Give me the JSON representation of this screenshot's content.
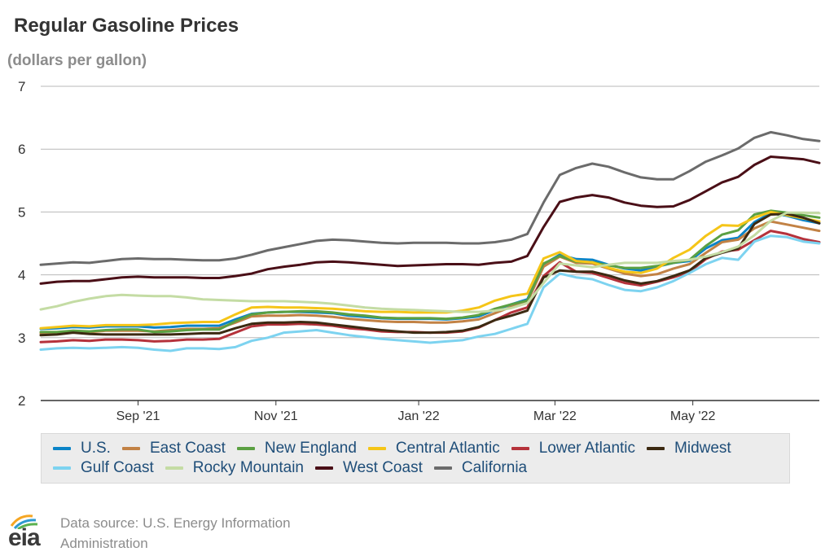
{
  "chart_data": {
    "type": "line",
    "title": "Regular Gasoline Prices",
    "subtitle": "(dollars per gallon)",
    "ylim": [
      2,
      7
    ],
    "yticks": [
      "2",
      "3",
      "4",
      "5",
      "6",
      "7"
    ],
    "xlabel": "",
    "ylabel": "",
    "xlim": [
      0,
      48
    ],
    "xticks": [
      {
        "label": "Sep '21",
        "x": 6
      },
      {
        "label": "Nov '21",
        "x": 14.5
      },
      {
        "label": "Jan '22",
        "x": 23.3
      },
      {
        "label": "Mar '22",
        "x": 31.7
      },
      {
        "label": "May '22",
        "x": 40.2
      }
    ],
    "x": [
      0,
      1,
      2,
      3,
      4,
      5,
      6,
      7,
      8,
      9,
      10,
      11,
      12,
      13,
      14,
      15,
      16,
      17,
      18,
      19,
      20,
      21,
      22,
      23,
      24,
      25,
      26,
      27,
      28,
      29,
      30,
      31,
      32,
      33,
      34,
      35,
      36,
      37,
      38,
      39,
      40,
      41,
      42,
      43,
      44,
      45,
      46,
      47,
      48
    ],
    "series": [
      {
        "name": "U.S.",
        "color": "#0b84c7",
        "values": [
          3.14,
          3.15,
          3.17,
          3.16,
          3.18,
          3.18,
          3.18,
          3.16,
          3.17,
          3.19,
          3.19,
          3.19,
          3.29,
          3.38,
          3.4,
          3.41,
          3.41,
          3.4,
          3.39,
          3.35,
          3.33,
          3.31,
          3.3,
          3.3,
          3.3,
          3.29,
          3.31,
          3.34,
          3.44,
          3.53,
          3.61,
          4.17,
          4.32,
          4.25,
          4.24,
          4.16,
          4.1,
          4.07,
          4.13,
          4.19,
          4.22,
          4.42,
          4.55,
          4.59,
          4.84,
          4.98,
          4.94,
          4.87,
          4.82
        ]
      },
      {
        "name": "East Coast",
        "color": "#c28245",
        "values": [
          3.07,
          3.08,
          3.1,
          3.09,
          3.11,
          3.11,
          3.11,
          3.1,
          3.12,
          3.14,
          3.14,
          3.15,
          3.24,
          3.34,
          3.35,
          3.35,
          3.36,
          3.35,
          3.33,
          3.3,
          3.28,
          3.26,
          3.25,
          3.25,
          3.24,
          3.24,
          3.26,
          3.29,
          3.39,
          3.49,
          3.57,
          4.13,
          4.29,
          4.19,
          4.18,
          4.1,
          4.02,
          3.98,
          4.01,
          4.1,
          4.17,
          4.35,
          4.52,
          4.56,
          4.74,
          4.85,
          4.8,
          4.75,
          4.7
        ]
      },
      {
        "name": "New England",
        "color": "#5ba042",
        "values": [
          3.09,
          3.09,
          3.11,
          3.1,
          3.12,
          3.13,
          3.13,
          3.09,
          3.1,
          3.12,
          3.13,
          3.13,
          3.26,
          3.37,
          3.4,
          3.41,
          3.42,
          3.42,
          3.4,
          3.37,
          3.35,
          3.32,
          3.31,
          3.31,
          3.31,
          3.3,
          3.32,
          3.36,
          3.46,
          3.53,
          3.59,
          4.18,
          4.3,
          4.21,
          4.2,
          4.15,
          4.11,
          4.11,
          4.14,
          4.19,
          4.24,
          4.46,
          4.64,
          4.71,
          4.96,
          5.02,
          4.99,
          4.95,
          4.91
        ]
      },
      {
        "name": "Central Atlantic",
        "color": "#f5c518",
        "values": [
          3.15,
          3.17,
          3.19,
          3.18,
          3.2,
          3.2,
          3.2,
          3.21,
          3.23,
          3.24,
          3.25,
          3.25,
          3.37,
          3.48,
          3.49,
          3.48,
          3.48,
          3.47,
          3.46,
          3.44,
          3.42,
          3.41,
          3.41,
          3.4,
          3.4,
          3.4,
          3.43,
          3.48,
          3.59,
          3.66,
          3.7,
          4.26,
          4.36,
          4.22,
          4.2,
          4.11,
          4.05,
          4.03,
          4.1,
          4.27,
          4.4,
          4.62,
          4.79,
          4.78,
          4.91,
          5.0,
          4.95,
          4.9,
          4.85
        ]
      },
      {
        "name": "Lower Atlantic",
        "color": "#b5323b",
        "values": [
          2.93,
          2.94,
          2.96,
          2.95,
          2.97,
          2.97,
          2.96,
          2.94,
          2.95,
          2.97,
          2.97,
          2.98,
          3.08,
          3.18,
          3.21,
          3.21,
          3.22,
          3.21,
          3.19,
          3.15,
          3.13,
          3.1,
          3.09,
          3.09,
          3.08,
          3.08,
          3.1,
          3.16,
          3.28,
          3.4,
          3.48,
          3.98,
          4.2,
          4.05,
          4.03,
          3.95,
          3.87,
          3.83,
          3.89,
          3.96,
          4.05,
          4.25,
          4.37,
          4.4,
          4.55,
          4.7,
          4.65,
          4.57,
          4.52
        ]
      },
      {
        "name": "Midwest",
        "color": "#3c2a12",
        "values": [
          3.04,
          3.05,
          3.08,
          3.06,
          3.05,
          3.05,
          3.05,
          3.05,
          3.05,
          3.06,
          3.07,
          3.07,
          3.15,
          3.22,
          3.24,
          3.24,
          3.25,
          3.24,
          3.21,
          3.18,
          3.15,
          3.12,
          3.1,
          3.08,
          3.08,
          3.09,
          3.11,
          3.17,
          3.28,
          3.35,
          3.43,
          3.96,
          4.07,
          4.05,
          4.05,
          3.99,
          3.91,
          3.86,
          3.9,
          3.98,
          4.07,
          4.27,
          4.35,
          4.42,
          4.81,
          4.96,
          4.97,
          4.91,
          4.82
        ]
      },
      {
        "name": "Gulf Coast",
        "color": "#7dd3f0",
        "values": [
          2.81,
          2.83,
          2.84,
          2.83,
          2.84,
          2.85,
          2.84,
          2.81,
          2.79,
          2.83,
          2.83,
          2.82,
          2.85,
          2.95,
          3.0,
          3.08,
          3.1,
          3.12,
          3.08,
          3.04,
          3.01,
          2.98,
          2.96,
          2.94,
          2.92,
          2.94,
          2.96,
          3.02,
          3.06,
          3.14,
          3.22,
          3.8,
          4.02,
          3.96,
          3.93,
          3.84,
          3.76,
          3.74,
          3.8,
          3.9,
          4.03,
          4.17,
          4.27,
          4.24,
          4.53,
          4.62,
          4.6,
          4.53,
          4.5
        ]
      },
      {
        "name": "Rocky Mountain",
        "color": "#c4dca4",
        "values": [
          3.45,
          3.5,
          3.57,
          3.62,
          3.66,
          3.68,
          3.67,
          3.66,
          3.66,
          3.64,
          3.61,
          3.6,
          3.59,
          3.58,
          3.58,
          3.58,
          3.57,
          3.56,
          3.54,
          3.51,
          3.48,
          3.46,
          3.45,
          3.44,
          3.43,
          3.42,
          3.41,
          3.41,
          3.43,
          3.47,
          3.55,
          3.87,
          4.18,
          4.15,
          4.12,
          4.16,
          4.19,
          4.19,
          4.19,
          4.22,
          4.24,
          4.29,
          4.36,
          4.45,
          4.63,
          4.86,
          4.99,
          4.99,
          4.98
        ]
      },
      {
        "name": "West Coast",
        "color": "#4a0f17",
        "values": [
          3.86,
          3.89,
          3.9,
          3.9,
          3.93,
          3.96,
          3.97,
          3.96,
          3.96,
          3.96,
          3.95,
          3.95,
          3.98,
          4.02,
          4.09,
          4.13,
          4.16,
          4.2,
          4.21,
          4.2,
          4.18,
          4.16,
          4.14,
          4.15,
          4.16,
          4.17,
          4.17,
          4.16,
          4.19,
          4.21,
          4.3,
          4.76,
          5.16,
          5.23,
          5.27,
          5.23,
          5.15,
          5.1,
          5.08,
          5.09,
          5.19,
          5.33,
          5.47,
          5.56,
          5.75,
          5.88,
          5.86,
          5.84,
          5.78
        ]
      },
      {
        "name": "California",
        "color": "#6b6b6b",
        "values": [
          4.16,
          4.18,
          4.2,
          4.19,
          4.22,
          4.25,
          4.26,
          4.25,
          4.25,
          4.24,
          4.23,
          4.23,
          4.26,
          4.32,
          4.39,
          4.44,
          4.49,
          4.54,
          4.56,
          4.55,
          4.53,
          4.51,
          4.5,
          4.51,
          4.51,
          4.51,
          4.5,
          4.5,
          4.52,
          4.56,
          4.65,
          5.15,
          5.59,
          5.7,
          5.77,
          5.72,
          5.63,
          5.55,
          5.52,
          5.52,
          5.65,
          5.8,
          5.9,
          6.01,
          6.18,
          6.27,
          6.22,
          6.16,
          6.13
        ]
      }
    ]
  },
  "legend": {
    "items": [
      "U.S.",
      "East Coast",
      "New England",
      "Central Atlantic",
      "Lower Atlantic",
      "Midwest",
      "Gulf Coast",
      "Rocky Mountain",
      "West Coast",
      "California"
    ]
  },
  "footer": {
    "logo_text": "eia",
    "source": "Data source: U.S. Energy Information Administration"
  },
  "colors": {
    "grid": "#b8b8b8",
    "axis": "#333333",
    "legend_text": "#1f4e79"
  }
}
